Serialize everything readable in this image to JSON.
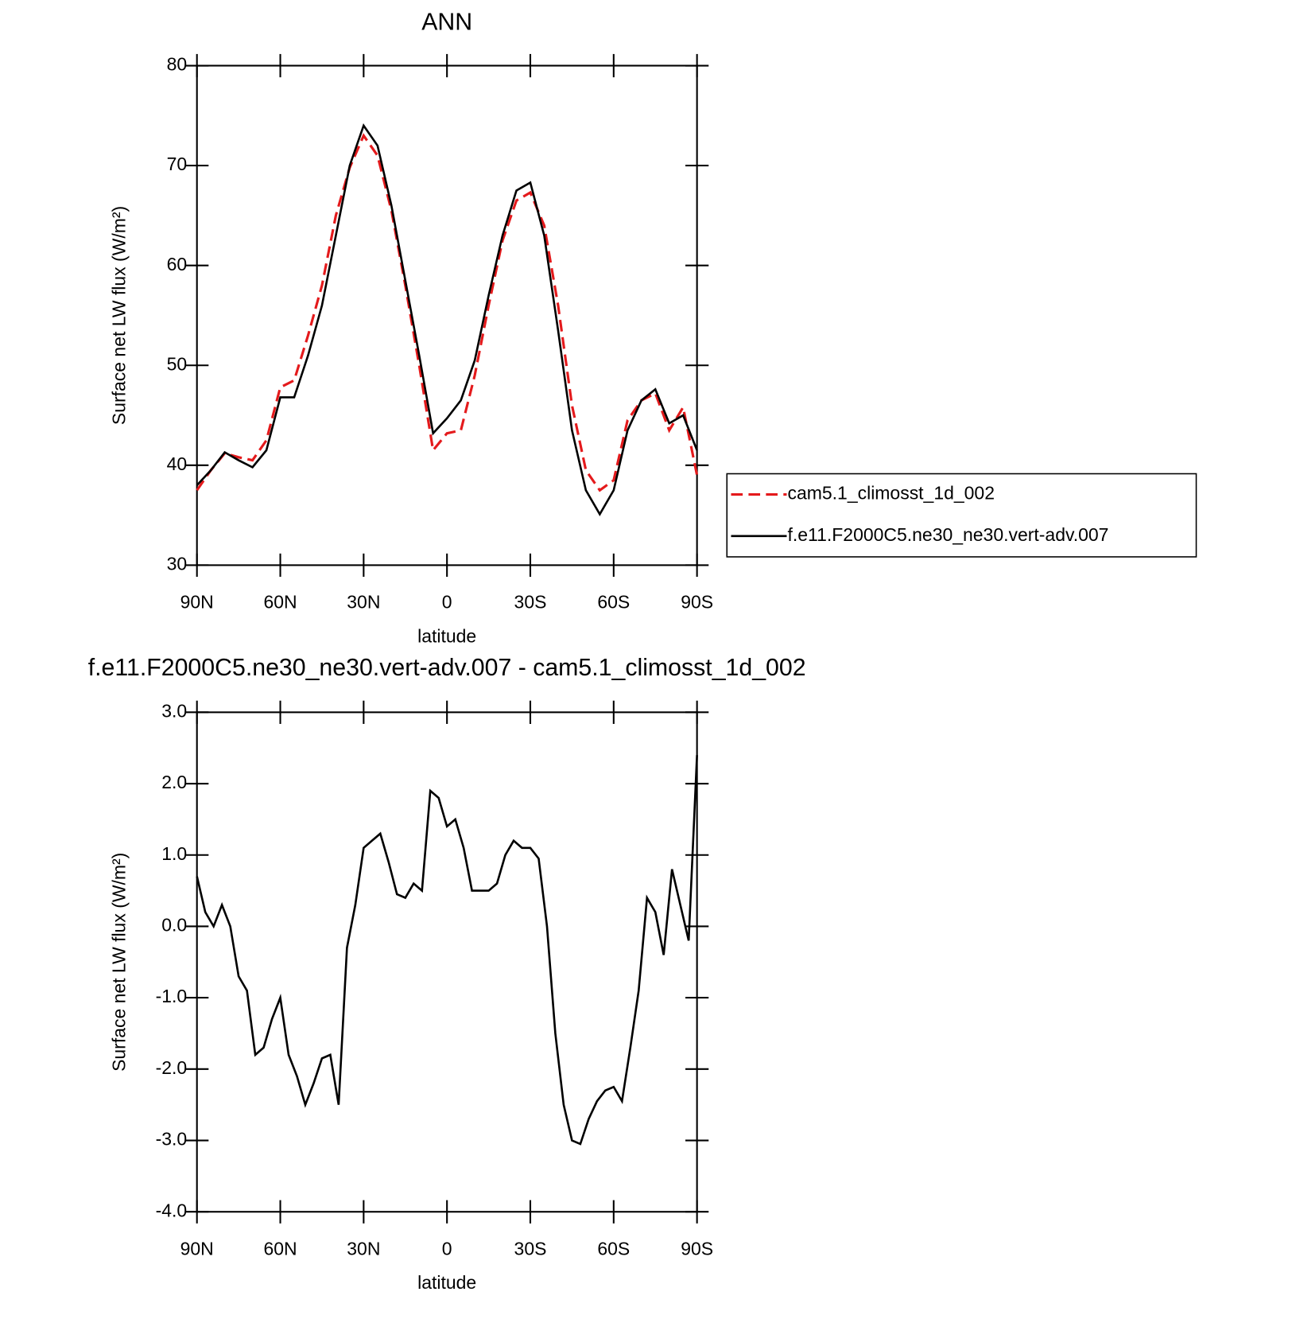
{
  "chart_data": [
    {
      "type": "line",
      "title": "ANN",
      "xlabel": "latitude",
      "ylabel": "Surface net LW flux (W/m²)",
      "x": [
        90,
        85,
        80,
        75,
        70,
        65,
        60,
        55,
        50,
        45,
        40,
        35,
        30,
        25,
        20,
        15,
        10,
        5,
        0,
        -5,
        -10,
        -15,
        -20,
        -25,
        -30,
        -35,
        -40,
        -45,
        -50,
        -55,
        -60,
        -65,
        -70,
        -75,
        -80,
        -85,
        -90
      ],
      "series": [
        {
          "name": "cam5.1_climosst_1d_002",
          "color": "#e41a1c",
          "dash": true,
          "values": [
            37.5,
            39.5,
            41.2,
            40.8,
            40.5,
            42.5,
            47.8,
            48.5,
            53,
            58,
            65,
            69.8,
            73,
            71,
            65.5,
            58,
            50,
            41.5,
            43.2,
            43.5,
            49,
            56,
            62.5,
            66.5,
            67.3,
            64,
            56,
            46,
            39.5,
            37.5,
            38.5,
            44.5,
            46.5,
            47.2,
            43.5,
            45.8,
            39
          ]
        },
        {
          "name": "f.e11.F2000C5.ne30_ne30.vert-adv.007",
          "color": "#000000",
          "dash": false,
          "values": [
            38,
            39.5,
            41.3,
            40.5,
            39.8,
            41.5,
            46.8,
            46.8,
            51,
            56,
            63,
            70,
            74,
            72,
            66,
            58.5,
            51,
            43.2,
            44.7,
            46.5,
            50.5,
            57,
            63,
            67.5,
            68.3,
            63,
            53.5,
            43.5,
            37.5,
            35.1,
            37.5,
            43.5,
            46.5,
            47.6,
            44.2,
            45,
            41.5
          ]
        }
      ],
      "xlim": [
        90,
        -90
      ],
      "xticks": [
        {
          "value": 90,
          "label": "90N"
        },
        {
          "value": 60,
          "label": "60N"
        },
        {
          "value": 30,
          "label": "30N"
        },
        0,
        {
          "value": -30,
          "label": "30S"
        },
        {
          "value": -60,
          "label": "60S"
        },
        {
          "value": -90,
          "label": "90S"
        }
      ],
      "ylim": [
        30,
        80
      ],
      "yticks": [
        30,
        40,
        50,
        60,
        70,
        80
      ]
    },
    {
      "type": "line",
      "title": "f.e11.F2000C5.ne30_ne30.vert-adv.007 - cam5.1_climosst_1d_002",
      "xlabel": "latitude",
      "ylabel": "Surface net LW flux (W/m²)",
      "x": [
        90,
        87,
        84,
        81,
        78,
        75,
        72,
        69,
        66,
        63,
        60,
        57,
        54,
        51,
        48,
        45,
        42,
        39,
        36,
        33,
        30,
        27,
        24,
        21,
        18,
        15,
        12,
        9,
        6,
        3,
        0,
        -3,
        -6,
        -9,
        -12,
        -15,
        -18,
        -21,
        -24,
        -27,
        -30,
        -33,
        -36,
        -39,
        -42,
        -45,
        -48,
        -51,
        -54,
        -57,
        -60,
        -63,
        -66,
        -69,
        -72,
        -75,
        -78,
        -81,
        -84,
        -87,
        -90
      ],
      "series": [
        {
          "color": "#000000",
          "dash": false,
          "values": [
            0.7,
            0.2,
            0.0,
            0.3,
            0.0,
            -0.7,
            -0.9,
            -1.8,
            -1.7,
            -1.3,
            -1.0,
            -1.8,
            -2.1,
            -2.5,
            -2.2,
            -1.85,
            -1.8,
            -2.5,
            -0.3,
            0.3,
            1.1,
            1.2,
            1.3,
            0.9,
            0.45,
            0.4,
            0.6,
            0.5,
            1.9,
            1.8,
            1.4,
            1.5,
            1.1,
            0.5,
            0.5,
            0.5,
            0.6,
            1.0,
            1.2,
            1.1,
            1.1,
            0.95,
            0.0,
            -1.5,
            -2.5,
            -3.0,
            -3.05,
            -2.7,
            -2.45,
            -2.3,
            -2.25,
            -2.45,
            -1.7,
            -0.9,
            0.4,
            0.2,
            -0.4,
            0.8,
            0.3,
            -0.2,
            2.4
          ]
        }
      ],
      "xlim": [
        90,
        -90
      ],
      "xticks": [
        {
          "value": 90,
          "label": "90N"
        },
        {
          "value": 60,
          "label": "60N"
        },
        {
          "value": 30,
          "label": "30N"
        },
        0,
        {
          "value": -30,
          "label": "30S"
        },
        {
          "value": -60,
          "label": "60S"
        },
        {
          "value": -90,
          "label": "90S"
        }
      ],
      "ylim": [
        -4,
        3
      ],
      "yticks": [
        {
          "value": -4,
          "label": "-4.0"
        },
        {
          "value": -3,
          "label": "-3.0"
        },
        {
          "value": -2,
          "label": "-2.0"
        },
        {
          "value": -1,
          "label": "-1.0"
        },
        {
          "value": 0,
          "label": "0.0"
        },
        {
          "value": 1,
          "label": "1.0"
        },
        {
          "value": 2,
          "label": "2.0"
        },
        {
          "value": 3,
          "label": "3.0"
        }
      ]
    }
  ]
}
